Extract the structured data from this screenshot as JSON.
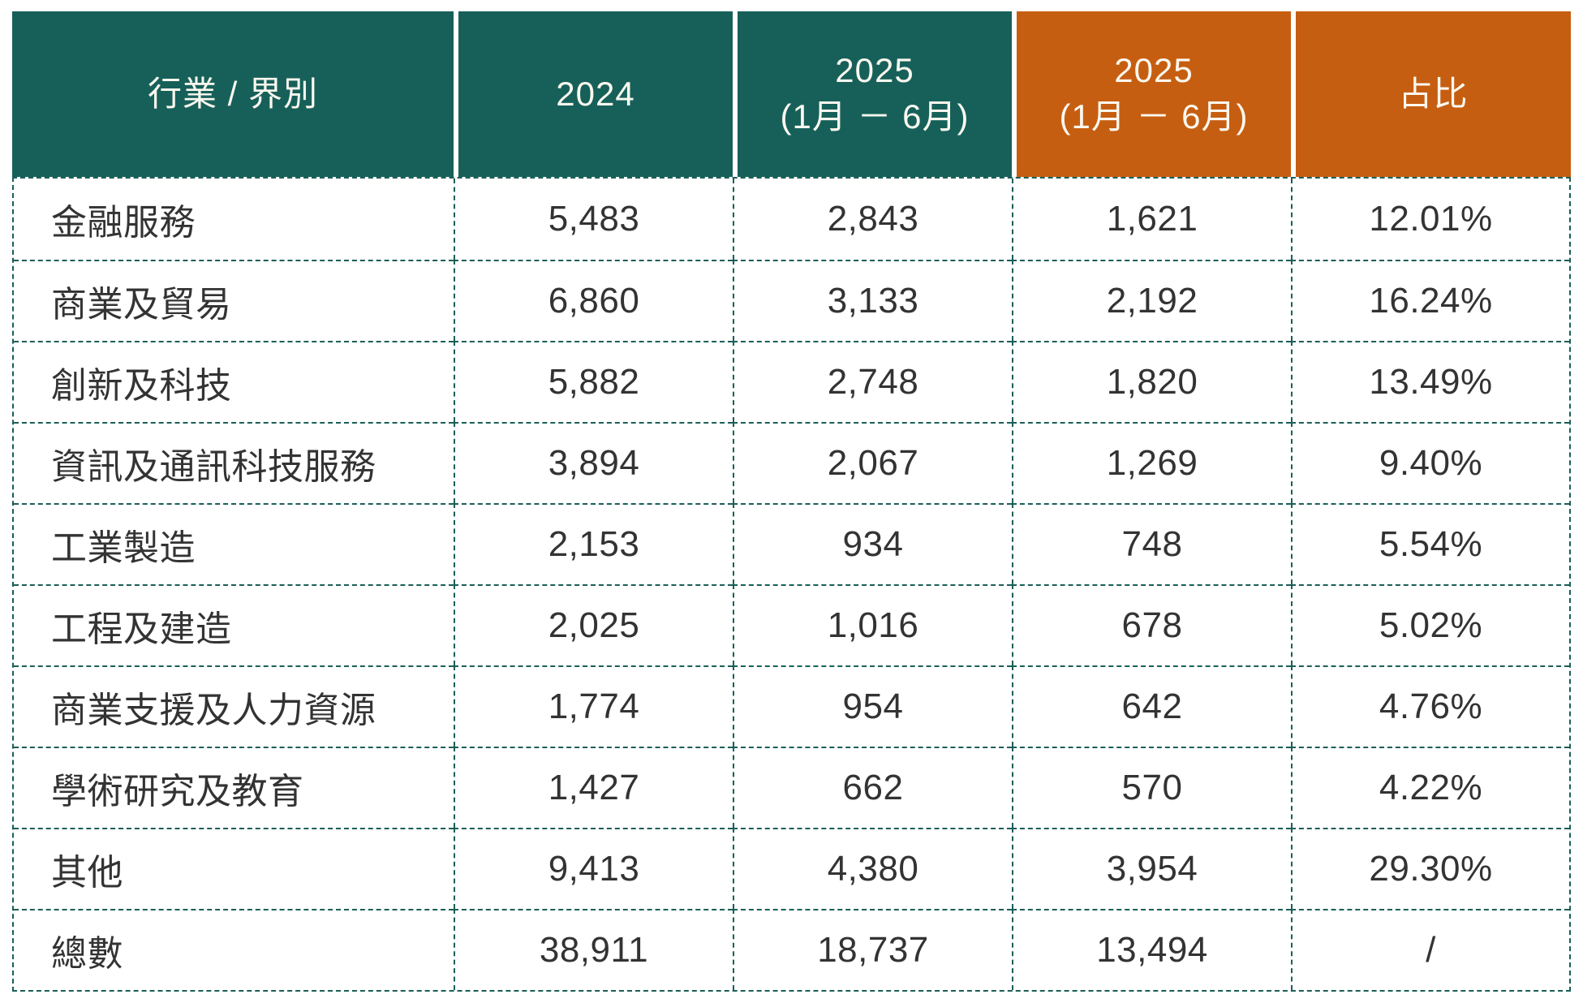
{
  "colors": {
    "teal": "#17605A",
    "orange": "#C65E11",
    "header_text": "#FBF8EF",
    "body_text": "#333333",
    "border": "#1B5F58",
    "background": "#FFFFFF"
  },
  "chart_data": {
    "type": "table",
    "columns": [
      {
        "label_lines": [
          "行業 / 界別"
        ],
        "theme": "teal",
        "align": "left"
      },
      {
        "label_lines": [
          "2024"
        ],
        "theme": "teal",
        "align": "center"
      },
      {
        "label_lines": [
          "2025",
          "(1月 － 6月)"
        ],
        "theme": "teal",
        "align": "center"
      },
      {
        "label_lines": [
          "2025",
          "(1月 － 6月)"
        ],
        "theme": "orange",
        "align": "center"
      },
      {
        "label_lines": [
          "占比"
        ],
        "theme": "orange",
        "align": "center"
      }
    ],
    "rows": [
      [
        "金融服務",
        "5,483",
        "2,843",
        "1,621",
        "12.01%"
      ],
      [
        "商業及貿易",
        "6,860",
        "3,133",
        "2,192",
        "16.24%"
      ],
      [
        "創新及科技",
        "5,882",
        "2,748",
        "1,820",
        "13.49%"
      ],
      [
        "資訊及通訊科技服務",
        "3,894",
        "2,067",
        "1,269",
        "9.40%"
      ],
      [
        "工業製造",
        "2,153",
        "934",
        "748",
        "5.54%"
      ],
      [
        "工程及建造",
        "2,025",
        "1,016",
        "678",
        "5.02%"
      ],
      [
        "商業支援及人力資源",
        "1,774",
        "954",
        "642",
        "4.76%"
      ],
      [
        "學術研究及教育",
        "1,427",
        "662",
        "570",
        "4.22%"
      ],
      [
        "其他",
        "9,413",
        "4,380",
        "3,954",
        "29.30%"
      ],
      [
        "總數",
        "38,911",
        "18,737",
        "13,494",
        "/"
      ]
    ]
  }
}
